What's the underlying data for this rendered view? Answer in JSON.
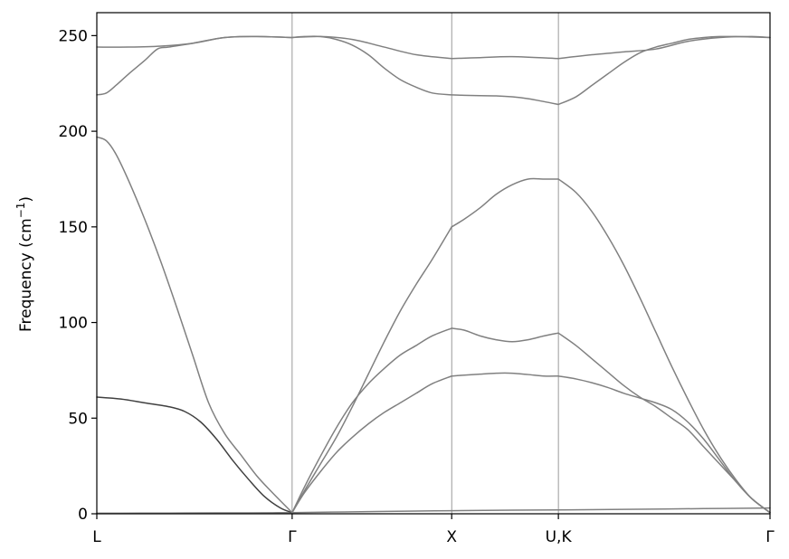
{
  "chart_data": {
    "type": "line",
    "title": "",
    "xlabel": "",
    "ylabel": {
      "prefix": "Frequency (cm",
      "superscript": "−1",
      "suffix": ")"
    },
    "ylim": [
      0,
      262
    ],
    "yticks": [
      0,
      50,
      100,
      150,
      200,
      250
    ],
    "xlim": [
      0,
      4.215
    ],
    "xticks": [
      {
        "label": "L",
        "x": 0
      },
      {
        "label": "Γ",
        "x": 1.223
      },
      {
        "label": "X",
        "x": 2.222
      },
      {
        "label": "U,K",
        "x": 2.89
      },
      {
        "label": "Γ",
        "x": 4.215
      }
    ],
    "grid": "vertical lines at high-symmetry points",
    "legend": "none",
    "colors": {
      "band": "#808080",
      "band_dark": "#404040",
      "frame": "#000000",
      "divider": "#808080"
    },
    "series": [
      {
        "color": "#808080",
        "x": [
          0,
          0.15,
          0.35,
          0.55,
          0.75,
          0.95,
          1.1,
          1.223
        ],
        "y": [
          0.3,
          0.32,
          0.36,
          0.4,
          0.45,
          0.5,
          0.55,
          0.6
        ]
      },
      {
        "color": "#404040",
        "x": [
          0,
          0.15,
          0.3,
          0.45,
          0.55,
          0.65,
          0.75,
          0.85,
          0.95,
          1.05,
          1.15,
          1.223
        ],
        "y": [
          61,
          60,
          58,
          56,
          53.5,
          48,
          39,
          28,
          18,
          9,
          3,
          0.6
        ]
      },
      {
        "color": "#808080",
        "x": [
          0,
          0.06,
          0.12,
          0.2,
          0.3,
          0.4,
          0.5,
          0.6,
          0.7,
          0.8,
          0.9,
          1.0,
          1.1,
          1.223
        ],
        "y": [
          197,
          195,
          188,
          174,
          154,
          132,
          108,
          83,
          58,
          42,
          31,
          20,
          11,
          0.6
        ]
      },
      {
        "color": "#808080",
        "x": [
          0,
          0.06,
          0.12,
          0.2,
          0.3,
          0.38,
          0.45,
          0.6,
          0.8,
          1.0,
          1.223
        ],
        "y": [
          219,
          220,
          224,
          230,
          237,
          243,
          244,
          246,
          249,
          249.5,
          249
        ]
      },
      {
        "color": "#808080",
        "x": [
          0,
          0.2,
          0.4,
          0.6,
          0.8,
          1.0,
          1.223
        ],
        "y": [
          244,
          244,
          244.5,
          246,
          249,
          249.5,
          249
        ]
      },
      {
        "color": "#808080",
        "x": [
          1.223,
          1.3,
          1.4,
          1.5,
          1.6,
          1.7,
          1.8,
          1.9,
          2.0,
          2.1,
          2.222
        ],
        "y": [
          0.6,
          12,
          26,
          40,
          56,
          73,
          90,
          106,
          120,
          133,
          150
        ]
      },
      {
        "color": "#808080",
        "x": [
          2.222,
          2.3,
          2.4,
          2.5,
          2.6,
          2.7,
          2.8,
          2.89
        ],
        "y": [
          150,
          154,
          160,
          167,
          172,
          175,
          175,
          175
        ]
      },
      {
        "color": "#808080",
        "x": [
          2.89,
          3.0,
          3.1,
          3.2,
          3.3,
          3.4,
          3.5,
          3.6,
          3.7,
          3.8,
          3.9,
          4.0,
          4.1,
          4.215
        ],
        "y": [
          175,
          168,
          158,
          145,
          130,
          113,
          95,
          77,
          60,
          44,
          30,
          18,
          8,
          0.6
        ]
      },
      {
        "color": "#808080",
        "x": [
          1.223,
          1.3,
          1.4,
          1.5,
          1.6,
          1.7,
          1.8,
          1.9,
          2.0,
          2.1,
          2.222
        ],
        "y": [
          0.6,
          14,
          30,
          45,
          58,
          68,
          76,
          83,
          88,
          93,
          97
        ]
      },
      {
        "color": "#808080",
        "x": [
          2.222,
          2.3,
          2.4,
          2.5,
          2.6,
          2.7,
          2.8,
          2.89
        ],
        "y": [
          97,
          96,
          93,
          91,
          90,
          91,
          93,
          94.5
        ]
      },
      {
        "color": "#808080",
        "x": [
          2.89,
          3.0,
          3.1,
          3.2,
          3.3,
          3.4,
          3.5,
          3.6,
          3.7,
          3.8,
          3.9,
          4.0,
          4.1,
          4.215
        ],
        "y": [
          94.5,
          88,
          81,
          74,
          67,
          61,
          56,
          50,
          44,
          35,
          26,
          17,
          8,
          0.6
        ]
      },
      {
        "color": "#808080",
        "x": [
          1.223,
          1.3,
          1.4,
          1.5,
          1.6,
          1.7,
          1.8,
          1.9,
          2.0,
          2.1,
          2.222
        ],
        "y": [
          0.6,
          11,
          22,
          32,
          40,
          47,
          53,
          58,
          63,
          68,
          72
        ]
      },
      {
        "color": "#808080",
        "x": [
          2.222,
          2.3,
          2.4,
          2.5,
          2.6,
          2.7,
          2.8,
          2.89
        ],
        "y": [
          72,
          72.5,
          73,
          73.5,
          73.5,
          72.8,
          72,
          72
        ]
      },
      {
        "color": "#808080",
        "x": [
          2.89,
          3.0,
          3.1,
          3.2,
          3.3,
          3.4,
          3.5,
          3.6,
          3.7,
          3.8,
          3.9,
          4.0,
          4.1,
          4.215
        ],
        "y": [
          72,
          70.5,
          68.5,
          66,
          63,
          60.5,
          58,
          54.5,
          48,
          39,
          28,
          17,
          8,
          0.6
        ]
      },
      {
        "color": "#808080",
        "x": [
          1.223,
          1.6,
          2.0,
          2.222,
          2.6,
          2.89,
          3.3,
          3.8,
          4.215
        ],
        "y": [
          0.6,
          1.0,
          1.4,
          1.6,
          1.9,
          2.0,
          2.3,
          2.7,
          3.0
        ]
      },
      {
        "color": "#808080",
        "x": [
          1.223,
          1.3,
          1.4,
          1.5,
          1.6,
          1.7,
          1.8,
          1.9,
          2.0,
          2.1,
          2.222
        ],
        "y": [
          249,
          249.5,
          249.5,
          248,
          245,
          240,
          233,
          227,
          223,
          220,
          219
        ]
      },
      {
        "color": "#808080",
        "x": [
          2.222,
          2.3,
          2.4,
          2.5,
          2.6,
          2.7,
          2.8,
          2.89
        ],
        "y": [
          219,
          218.8,
          218.6,
          218.5,
          218,
          217,
          215.5,
          214
        ]
      },
      {
        "color": "#808080",
        "x": [
          2.89,
          3.0,
          3.1,
          3.2,
          3.3,
          3.4,
          3.5,
          3.6,
          3.7,
          3.8,
          3.9,
          4.0,
          4.1,
          4.215
        ],
        "y": [
          214,
          218,
          224,
          230,
          236,
          241,
          244,
          246,
          248,
          249,
          249.5,
          249.5,
          249.3,
          249
        ]
      },
      {
        "color": "#808080",
        "x": [
          1.223,
          1.4,
          1.6,
          1.8,
          2.0,
          2.222
        ],
        "y": [
          249,
          249.5,
          248,
          244,
          240,
          238
        ]
      },
      {
        "color": "#808080",
        "x": [
          2.222,
          2.4,
          2.6,
          2.89
        ],
        "y": [
          238,
          238.5,
          239,
          238
        ]
      },
      {
        "color": "#808080",
        "x": [
          2.89,
          3.1,
          3.3,
          3.5,
          3.7,
          3.9,
          4.1,
          4.215
        ],
        "y": [
          238,
          240,
          241.5,
          243,
          247,
          249,
          249.5,
          249
        ]
      }
    ]
  }
}
